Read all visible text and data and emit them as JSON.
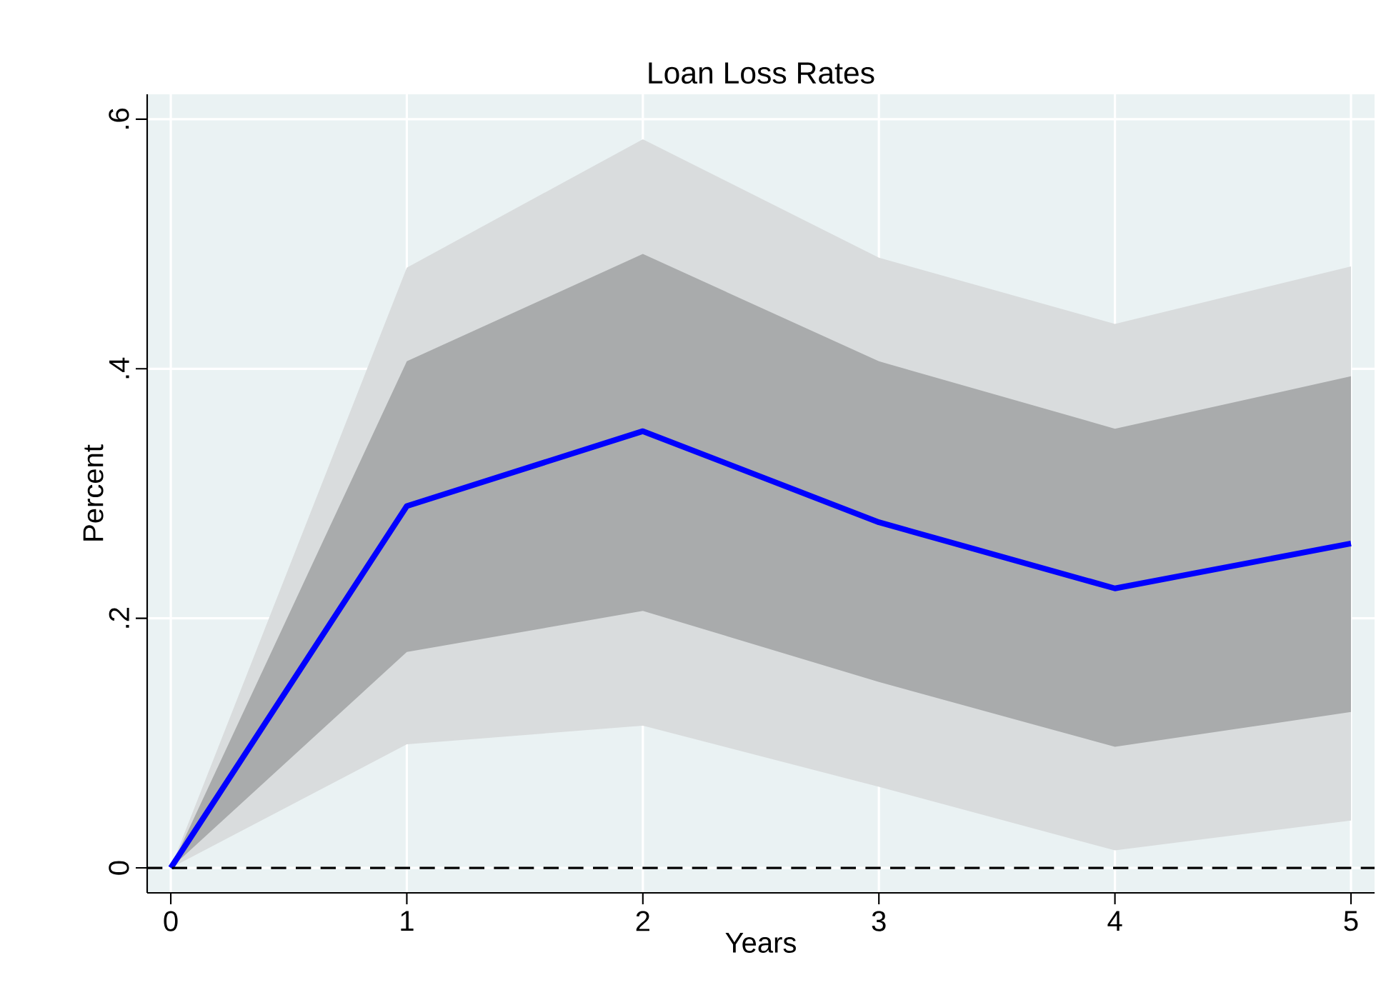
{
  "chart_data": {
    "type": "line",
    "title": "Loan Loss Rates",
    "xlabel": "Years",
    "ylabel": "Percent",
    "x": [
      0,
      1,
      2,
      3,
      4,
      5
    ],
    "series": [
      {
        "color": "#d9dcdd",
        "values": [
          null,
          null,
          null,
          null,
          null,
          null
        ],
        "lower": [
          0,
          0.099,
          0.114,
          0.065,
          0.014,
          0.038
        ],
        "upper": [
          0,
          0.481,
          0.584,
          0.489,
          0.436,
          0.482
        ]
      },
      {
        "color": "#a9abac",
        "values": [
          null,
          null,
          null,
          null,
          null,
          null
        ],
        "lower": [
          0,
          0.173,
          0.206,
          0.149,
          0.097,
          0.125
        ],
        "upper": [
          0,
          0.406,
          0.492,
          0.406,
          0.352,
          0.394
        ]
      },
      {
        "color": "#0000ff",
        "values": [
          0,
          0.29,
          0.35,
          0.277,
          0.224,
          0.26
        ]
      }
    ],
    "xlim": [
      -0.1,
      5.1
    ],
    "ylim": [
      -0.02,
      0.62
    ],
    "xticks": [
      0,
      1,
      2,
      3,
      4,
      5
    ],
    "yticks": [
      0,
      {
        "value": 0.2,
        "label": ".2"
      },
      {
        "value": 0.4,
        "label": ".4"
      },
      {
        "value": 0.6,
        "label": ".6"
      }
    ],
    "ref_lines": [
      {
        "axis": "y",
        "value": 0,
        "color": "#000000",
        "line_style": "dashed"
      }
    ],
    "grid": true,
    "marker": "none",
    "line_style": "solid"
  }
}
